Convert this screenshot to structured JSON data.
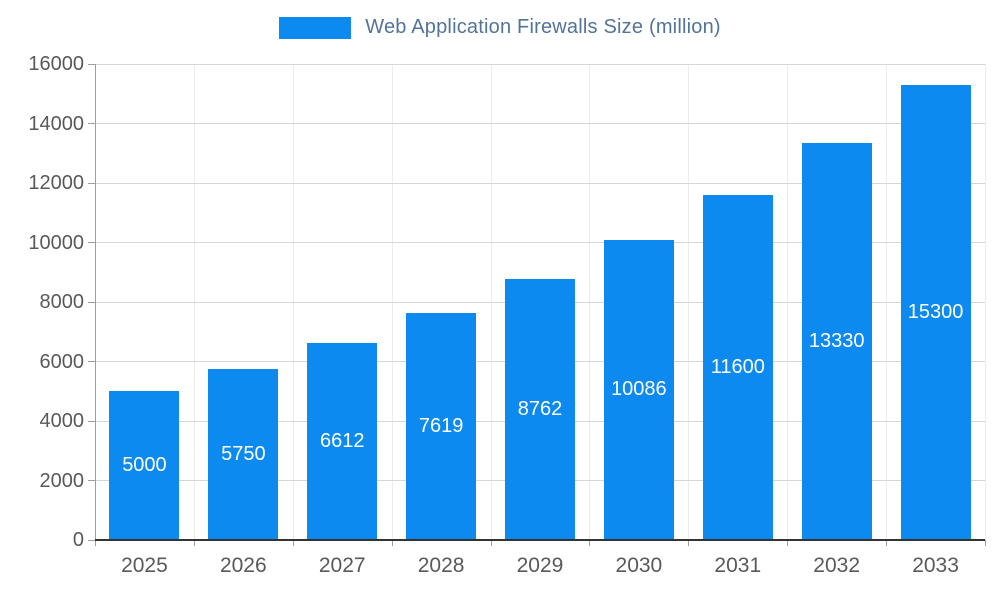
{
  "chart_data": {
    "type": "bar",
    "title": "Web Application Firewalls Size (million)",
    "categories": [
      "2025",
      "2026",
      "2027",
      "2028",
      "2029",
      "2030",
      "2031",
      "2032",
      "2033"
    ],
    "values": [
      5000,
      5750,
      6612,
      7619,
      8762,
      10086,
      11600,
      13330,
      15300
    ],
    "series": [
      {
        "name": "Web Application Firewalls Size (million)",
        "values": [
          5000,
          5750,
          6612,
          7619,
          8762,
          10086,
          11600,
          13330,
          15300
        ]
      }
    ],
    "xlabel": "",
    "ylabel": "",
    "ylim": [
      0,
      16000
    ],
    "yticks": [
      0,
      2000,
      4000,
      6000,
      8000,
      10000,
      12000,
      14000,
      16000
    ],
    "grid": true,
    "legend_position": "top-center",
    "value_labels_inside_bars": true,
    "colors": {
      "bar": "#0d8af0",
      "bar_value_label": "#ffffff",
      "title": "#527499",
      "tick_label": "#595959",
      "gridline": "#d6d6d6",
      "axis": "#333333",
      "background": "#ffffff"
    }
  }
}
